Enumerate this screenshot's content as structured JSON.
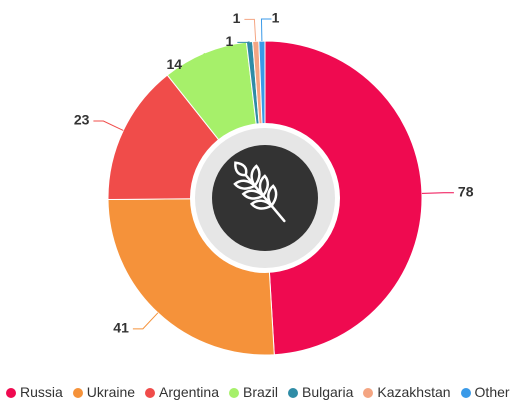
{
  "chart_data": {
    "type": "donut",
    "categories": [
      "Russia",
      "Ukraine",
      "Argentina",
      "Brazil",
      "Bulgaria",
      "Kazakhstan",
      "Other"
    ],
    "values": [
      78,
      41,
      23,
      14,
      1,
      1,
      1
    ],
    "colors": [
      "#ef0a50",
      "#f5923a",
      "#f04c4a",
      "#a6f06a",
      "#2f8ca6",
      "#f4a582",
      "#3a9ae8"
    ],
    "legend": "bottom"
  }
}
